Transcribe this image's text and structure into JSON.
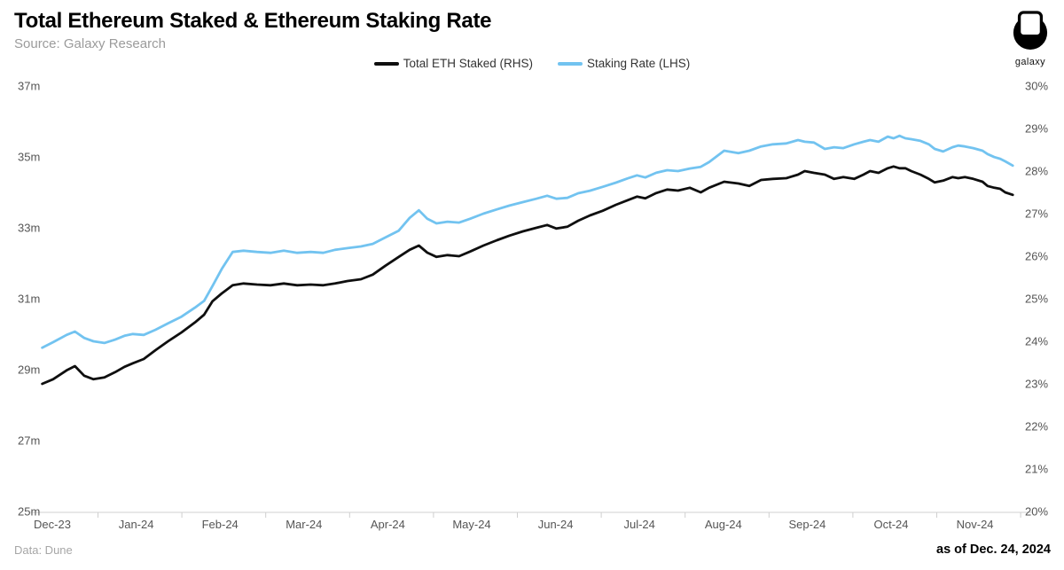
{
  "header": {
    "title": "Total Ethereum Staked & Ethereum Staking Rate",
    "source": "Source: Galaxy Research"
  },
  "logo": {
    "label": "galaxy"
  },
  "legend": {
    "items": [
      {
        "label": "Total ETH Staked (RHS)",
        "color": "#0f0f0f"
      },
      {
        "label": "Staking Rate (LHS)",
        "color": "#72c3f0"
      }
    ]
  },
  "footer": {
    "left": "Data: Dune",
    "right": "as of Dec. 24, 2024"
  },
  "chart_data": {
    "type": "line",
    "title": "Total Ethereum Staked & Ethereum Staking Rate",
    "x_axis": {
      "unit": "months since Dec-23 tick",
      "tick_labels": [
        "Dec-23",
        "Jan-24",
        "Feb-24",
        "Mar-24",
        "Apr-24",
        "May-24",
        "Jun-24",
        "Jul-24",
        "Aug-24",
        "Sep-24",
        "Oct-24",
        "Nov-24"
      ]
    },
    "left_axis": {
      "range": [
        25,
        37
      ],
      "ticks": [
        {
          "v": 37,
          "label": "37m"
        },
        {
          "v": 35,
          "label": "35m"
        },
        {
          "v": 33,
          "label": "33m"
        },
        {
          "v": 31,
          "label": "31m"
        },
        {
          "v": 29,
          "label": "29m"
        },
        {
          "v": 27,
          "label": "27m"
        },
        {
          "v": 25,
          "label": "25m"
        }
      ]
    },
    "right_axis": {
      "range": [
        20,
        30
      ],
      "ticks": [
        {
          "v": 30,
          "label": "30%"
        },
        {
          "v": 29,
          "label": "29%"
        },
        {
          "v": 28,
          "label": "28%"
        },
        {
          "v": 27,
          "label": "27%"
        },
        {
          "v": 26,
          "label": "26%"
        },
        {
          "v": 25,
          "label": "25%"
        },
        {
          "v": 24,
          "label": "24%"
        },
        {
          "v": 23,
          "label": "23%"
        },
        {
          "v": 22,
          "label": "22%"
        },
        {
          "v": 21,
          "label": "21%"
        },
        {
          "v": 20,
          "label": "20%"
        }
      ]
    },
    "series": [
      {
        "name": "Total ETH Staked (RHS)",
        "axis": "left",
        "unit": "million ETH",
        "color": "#0f0f0f",
        "points": [
          [
            -0.12,
            28.6
          ],
          [
            0.01,
            28.73
          ],
          [
            0.17,
            28.98
          ],
          [
            0.27,
            29.1
          ],
          [
            0.38,
            28.83
          ],
          [
            0.49,
            28.73
          ],
          [
            0.62,
            28.78
          ],
          [
            0.75,
            28.93
          ],
          [
            0.86,
            29.08
          ],
          [
            0.96,
            29.18
          ],
          [
            1.09,
            29.3
          ],
          [
            1.23,
            29.55
          ],
          [
            1.38,
            29.8
          ],
          [
            1.54,
            30.05
          ],
          [
            1.7,
            30.33
          ],
          [
            1.81,
            30.55
          ],
          [
            1.91,
            30.93
          ],
          [
            2.02,
            31.15
          ],
          [
            2.15,
            31.38
          ],
          [
            2.28,
            31.43
          ],
          [
            2.44,
            31.4
          ],
          [
            2.6,
            31.38
          ],
          [
            2.76,
            31.43
          ],
          [
            2.92,
            31.38
          ],
          [
            3.08,
            31.4
          ],
          [
            3.23,
            31.38
          ],
          [
            3.37,
            31.43
          ],
          [
            3.52,
            31.5
          ],
          [
            3.68,
            31.55
          ],
          [
            3.82,
            31.68
          ],
          [
            3.97,
            31.93
          ],
          [
            4.13,
            32.18
          ],
          [
            4.26,
            32.38
          ],
          [
            4.37,
            32.5
          ],
          [
            4.47,
            32.3
          ],
          [
            4.58,
            32.18
          ],
          [
            4.71,
            32.23
          ],
          [
            4.85,
            32.2
          ],
          [
            4.98,
            32.33
          ],
          [
            5.14,
            32.5
          ],
          [
            5.3,
            32.65
          ],
          [
            5.45,
            32.78
          ],
          [
            5.61,
            32.9
          ],
          [
            5.77,
            33.0
          ],
          [
            5.9,
            33.08
          ],
          [
            6.01,
            32.98
          ],
          [
            6.14,
            33.03
          ],
          [
            6.27,
            33.2
          ],
          [
            6.41,
            33.35
          ],
          [
            6.56,
            33.48
          ],
          [
            6.72,
            33.65
          ],
          [
            6.86,
            33.78
          ],
          [
            6.97,
            33.88
          ],
          [
            7.07,
            33.83
          ],
          [
            7.2,
            33.98
          ],
          [
            7.33,
            34.08
          ],
          [
            7.46,
            34.05
          ],
          [
            7.6,
            34.13
          ],
          [
            7.73,
            34.0
          ],
          [
            7.83,
            34.13
          ],
          [
            8.01,
            34.3
          ],
          [
            8.18,
            34.25
          ],
          [
            8.31,
            34.18
          ],
          [
            8.45,
            34.35
          ],
          [
            8.59,
            34.38
          ],
          [
            8.75,
            34.4
          ],
          [
            8.89,
            34.5
          ],
          [
            8.97,
            34.6
          ],
          [
            9.08,
            34.55
          ],
          [
            9.21,
            34.5
          ],
          [
            9.32,
            34.38
          ],
          [
            9.43,
            34.43
          ],
          [
            9.56,
            34.38
          ],
          [
            9.67,
            34.5
          ],
          [
            9.75,
            34.6
          ],
          [
            9.85,
            34.55
          ],
          [
            9.96,
            34.68
          ],
          [
            10.03,
            34.73
          ],
          [
            10.1,
            34.68
          ],
          [
            10.17,
            34.68
          ],
          [
            10.24,
            34.6
          ],
          [
            10.35,
            34.5
          ],
          [
            10.45,
            34.38
          ],
          [
            10.52,
            34.28
          ],
          [
            10.62,
            34.33
          ],
          [
            10.73,
            34.43
          ],
          [
            10.8,
            34.4
          ],
          [
            10.88,
            34.43
          ],
          [
            10.98,
            34.38
          ],
          [
            11.09,
            34.3
          ],
          [
            11.15,
            34.18
          ],
          [
            11.23,
            34.13
          ],
          [
            11.3,
            34.1
          ],
          [
            11.36,
            34.0
          ],
          [
            11.45,
            33.93
          ]
        ]
      },
      {
        "name": "Staking Rate (LHS)",
        "axis": "right",
        "unit": "%",
        "color": "#72c3f0",
        "points": [
          [
            -0.12,
            23.85
          ],
          [
            0.01,
            23.98
          ],
          [
            0.17,
            24.15
          ],
          [
            0.27,
            24.23
          ],
          [
            0.38,
            24.08
          ],
          [
            0.49,
            24.0
          ],
          [
            0.62,
            23.96
          ],
          [
            0.75,
            24.04
          ],
          [
            0.86,
            24.13
          ],
          [
            0.96,
            24.17
          ],
          [
            1.09,
            24.15
          ],
          [
            1.23,
            24.27
          ],
          [
            1.38,
            24.42
          ],
          [
            1.54,
            24.58
          ],
          [
            1.7,
            24.79
          ],
          [
            1.81,
            24.95
          ],
          [
            1.91,
            25.3
          ],
          [
            2.02,
            25.7
          ],
          [
            2.15,
            26.1
          ],
          [
            2.28,
            26.13
          ],
          [
            2.44,
            26.1
          ],
          [
            2.6,
            26.08
          ],
          [
            2.76,
            26.13
          ],
          [
            2.92,
            26.08
          ],
          [
            3.08,
            26.1
          ],
          [
            3.23,
            26.08
          ],
          [
            3.37,
            26.15
          ],
          [
            3.52,
            26.19
          ],
          [
            3.68,
            26.23
          ],
          [
            3.82,
            26.29
          ],
          [
            3.97,
            26.44
          ],
          [
            4.13,
            26.6
          ],
          [
            4.26,
            26.9
          ],
          [
            4.37,
            27.08
          ],
          [
            4.47,
            26.88
          ],
          [
            4.58,
            26.77
          ],
          [
            4.71,
            26.81
          ],
          [
            4.85,
            26.79
          ],
          [
            4.98,
            26.88
          ],
          [
            5.14,
            27.0
          ],
          [
            5.3,
            27.1
          ],
          [
            5.45,
            27.19
          ],
          [
            5.61,
            27.27
          ],
          [
            5.77,
            27.35
          ],
          [
            5.9,
            27.42
          ],
          [
            6.01,
            27.35
          ],
          [
            6.14,
            27.37
          ],
          [
            6.27,
            27.48
          ],
          [
            6.41,
            27.54
          ],
          [
            6.56,
            27.63
          ],
          [
            6.72,
            27.73
          ],
          [
            6.86,
            27.83
          ],
          [
            6.97,
            27.9
          ],
          [
            7.07,
            27.85
          ],
          [
            7.2,
            27.96
          ],
          [
            7.33,
            28.02
          ],
          [
            7.46,
            28.0
          ],
          [
            7.6,
            28.06
          ],
          [
            7.73,
            28.1
          ],
          [
            7.83,
            28.21
          ],
          [
            8.01,
            28.48
          ],
          [
            8.18,
            28.42
          ],
          [
            8.31,
            28.48
          ],
          [
            8.45,
            28.58
          ],
          [
            8.59,
            28.63
          ],
          [
            8.75,
            28.65
          ],
          [
            8.89,
            28.73
          ],
          [
            8.97,
            28.69
          ],
          [
            9.08,
            28.67
          ],
          [
            9.21,
            28.52
          ],
          [
            9.32,
            28.56
          ],
          [
            9.43,
            28.54
          ],
          [
            9.56,
            28.63
          ],
          [
            9.67,
            28.69
          ],
          [
            9.75,
            28.73
          ],
          [
            9.85,
            28.69
          ],
          [
            9.96,
            28.81
          ],
          [
            10.03,
            28.77
          ],
          [
            10.1,
            28.83
          ],
          [
            10.17,
            28.77
          ],
          [
            10.24,
            28.75
          ],
          [
            10.35,
            28.71
          ],
          [
            10.45,
            28.63
          ],
          [
            10.52,
            28.52
          ],
          [
            10.62,
            28.46
          ],
          [
            10.73,
            28.56
          ],
          [
            10.8,
            28.6
          ],
          [
            10.88,
            28.58
          ],
          [
            10.98,
            28.54
          ],
          [
            11.09,
            28.48
          ],
          [
            11.15,
            28.4
          ],
          [
            11.23,
            28.33
          ],
          [
            11.3,
            28.29
          ],
          [
            11.36,
            28.23
          ],
          [
            11.45,
            28.13
          ]
        ]
      }
    ]
  }
}
